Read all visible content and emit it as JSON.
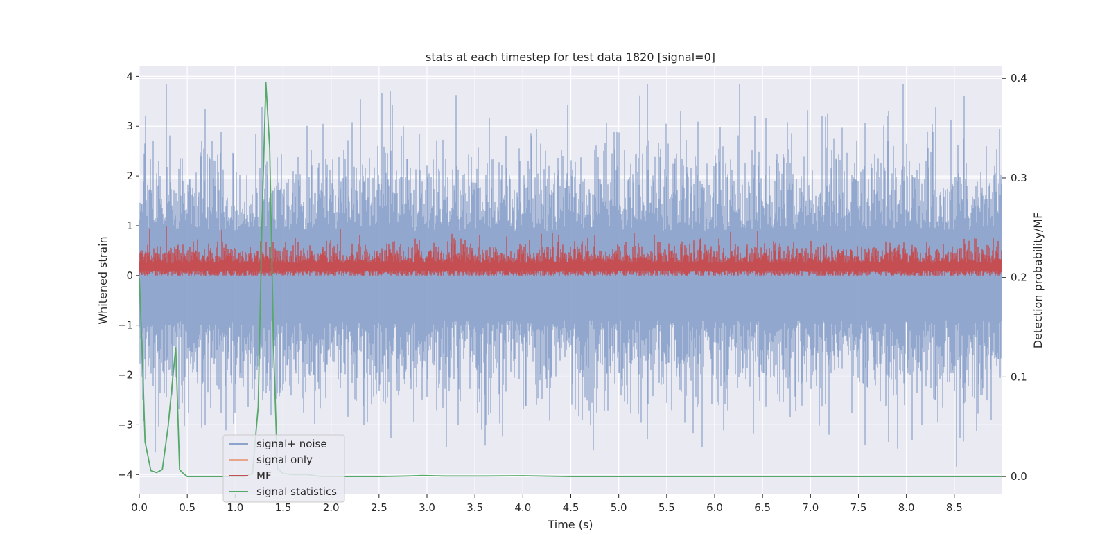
{
  "chart_data": {
    "type": "line",
    "title": "stats at each timestep for test data 1820 [signal=0]",
    "xlabel": "Time (s)",
    "ylabel": "Whitened strain",
    "ylabel_right": "Detection probability/MF",
    "xlim": [
      0.0,
      9.0
    ],
    "ylim": [
      -4.4,
      4.2
    ],
    "ylim_right": [
      -0.018,
      0.412
    ],
    "x_ticks": [
      0.0,
      0.5,
      1.0,
      1.5,
      2.0,
      2.5,
      3.0,
      3.5,
      4.0,
      4.5,
      5.0,
      5.5,
      6.0,
      6.5,
      7.0,
      7.5,
      8.0,
      8.5
    ],
    "x_tick_labels": [
      "0.0",
      "0.5",
      "1.0",
      "1.5",
      "2.0",
      "2.5",
      "3.0",
      "3.5",
      "4.0",
      "4.5",
      "5.0",
      "5.5",
      "6.0",
      "6.5",
      "7.0",
      "7.5",
      "8.0",
      "8.5"
    ],
    "y_ticks": [
      4,
      3,
      2,
      1,
      0,
      -1,
      -2,
      -3,
      -4
    ],
    "y_tick_labels": [
      "4",
      "3",
      "2",
      "1",
      "0",
      "−1",
      "−2",
      "−3",
      "−4"
    ],
    "y_ticks_right": [
      0.4,
      0.3,
      0.2,
      0.1,
      0.0
    ],
    "y_tick_labels_right": [
      "0.4",
      "0.3",
      "0.2",
      "0.1",
      "0.0"
    ],
    "grid": true,
    "legend": "lower-left",
    "series": [
      {
        "name": "signal+ noise",
        "axis": "left",
        "color": "#8da3cb",
        "style": "dense noise",
        "sample_rate_hz": 2048,
        "std": 1.0,
        "typical_range": [
          -2.6,
          2.6
        ],
        "peak_max": 3.84,
        "peak_min": -4.0
      },
      {
        "name": "signal only",
        "axis": "left",
        "color": "#e8a58a",
        "values": []
      },
      {
        "name": "MF",
        "axis": "left",
        "color": "#c44e52",
        "style": "dense non-negative noise",
        "typical_range": [
          0.0,
          0.85
        ],
        "peak_max": 1.0
      },
      {
        "name": "signal statistics",
        "axis": "right",
        "color": "#55a868",
        "x": [
          0.0,
          0.03,
          0.06,
          0.12,
          0.18,
          0.24,
          0.3,
          0.34,
          0.38,
          0.42,
          0.46,
          0.5,
          0.8,
          1.1,
          1.18,
          1.24,
          1.28,
          1.32,
          1.36,
          1.4,
          1.44,
          1.5,
          1.6,
          1.75,
          1.9,
          2.1,
          2.5,
          2.8,
          2.95,
          3.2,
          3.6,
          4.0,
          4.5,
          5.0,
          6.0,
          7.0,
          8.0,
          9.0
        ],
        "values": [
          0.2,
          0.125,
          0.035,
          0.006,
          0.004,
          0.007,
          0.05,
          0.09,
          0.13,
          0.007,
          0.003,
          0.0,
          0.0,
          0.0,
          0.003,
          0.07,
          0.26,
          0.396,
          0.33,
          0.13,
          0.008,
          0.003,
          0.002,
          0.002,
          0.0,
          0.0,
          0.0,
          0.0005,
          0.001,
          0.0005,
          0.0005,
          0.0008,
          0.0,
          0.0,
          0.0,
          0.0,
          0.0,
          0.0
        ]
      }
    ]
  }
}
